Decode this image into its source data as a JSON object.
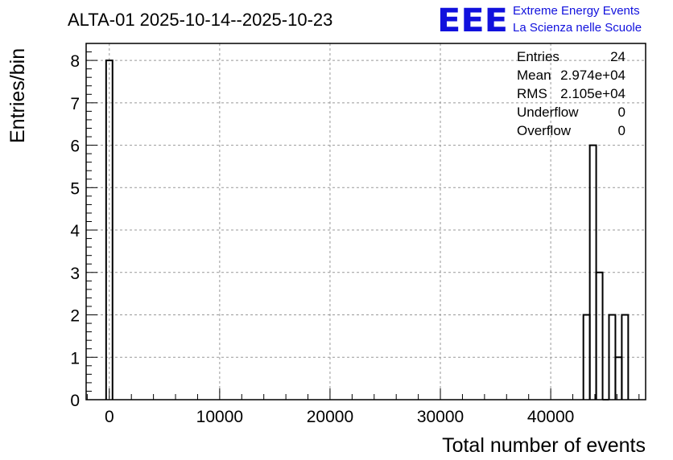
{
  "header": {
    "title": "ALTA-01 2025-10-14--2025-10-23",
    "brand_logo": "EEE",
    "brand_line1": "Extreme Energy Events",
    "brand_line2": "La Scienza nelle Scuole"
  },
  "stats": [
    {
      "label": "Entries",
      "value": "24"
    },
    {
      "label": "Mean",
      "value": "2.974e+04"
    },
    {
      "label": "RMS",
      "value": "2.105e+04"
    },
    {
      "label": "Underflow",
      "value": "0"
    },
    {
      "label": "Overflow",
      "value": "0"
    }
  ],
  "chart_data": {
    "type": "bar",
    "style": "step-histogram",
    "title": "ALTA-01 2025-10-14--2025-10-23",
    "xlabel": "Total number of events",
    "ylabel": "Entries/bin",
    "xlim": [
      -2100,
      48600
    ],
    "ylim": [
      0,
      8.4
    ],
    "xticks": [
      0,
      10000,
      20000,
      30000,
      40000
    ],
    "yticks": [
      0,
      1,
      2,
      3,
      4,
      5,
      6,
      7,
      8
    ],
    "grid": true,
    "bin_width": 580,
    "bins": [
      {
        "x0": -290,
        "x1": 290,
        "value": 8
      },
      {
        "x0": 42960,
        "x1": 43540,
        "value": 2
      },
      {
        "x0": 43540,
        "x1": 44120,
        "value": 6
      },
      {
        "x0": 44120,
        "x1": 44700,
        "value": 3
      },
      {
        "x0": 44700,
        "x1": 45280,
        "value": 0
      },
      {
        "x0": 45280,
        "x1": 45860,
        "value": 2
      },
      {
        "x0": 45860,
        "x1": 46440,
        "value": 1
      },
      {
        "x0": 46440,
        "x1": 47020,
        "value": 2
      }
    ]
  }
}
